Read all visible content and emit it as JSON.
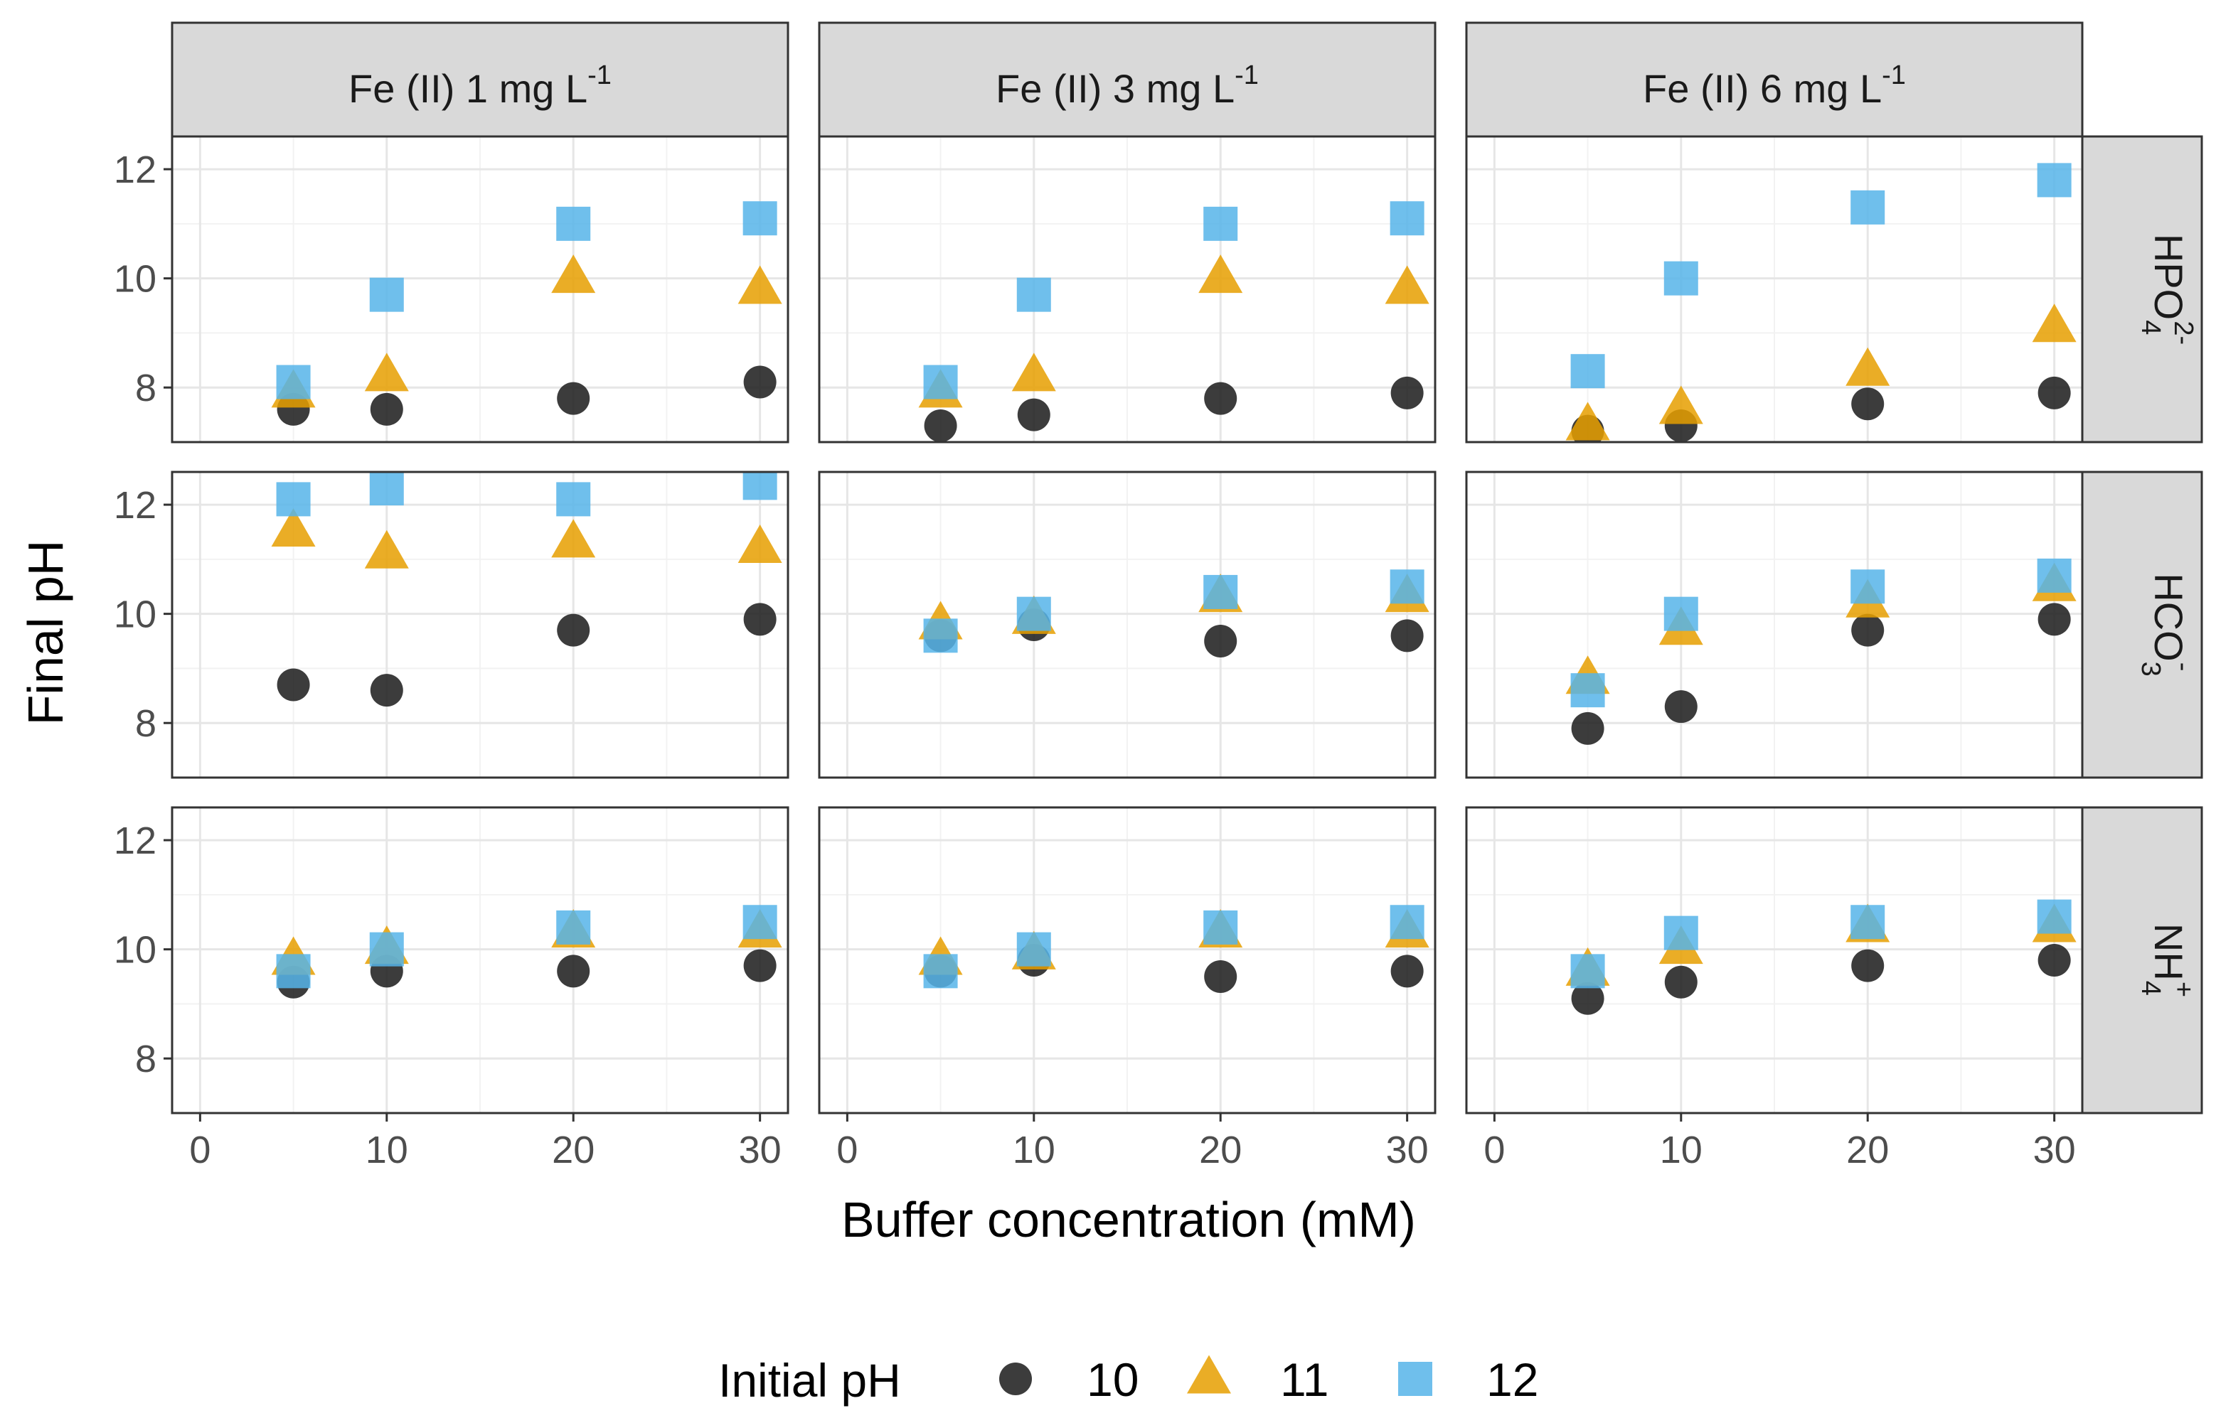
{
  "chart_data": {
    "type": "scatter",
    "facet_columns": [
      {
        "key": "fe1",
        "label": "Fe (II) 1 mg L",
        "sup": "-1"
      },
      {
        "key": "fe3",
        "label": "Fe (II) 3 mg L",
        "sup": "-1"
      },
      {
        "key": "fe6",
        "label": "Fe (II) 6 mg L",
        "sup": "-1"
      }
    ],
    "facet_rows": [
      {
        "key": "hpo4",
        "label": "HPO",
        "sub": "4",
        "sup": "2-"
      },
      {
        "key": "hco3",
        "label": "HCO",
        "sub": "3",
        "sup": "-"
      },
      {
        "key": "nh4",
        "label": "NH",
        "sub": "4",
        "sup": "+"
      }
    ],
    "xlabel": "Buffer concentration (mM)",
    "ylabel": "Final pH",
    "xlim": [
      -1.5,
      31.5
    ],
    "ylim": [
      7.0,
      12.6
    ],
    "xticks": [
      0,
      10,
      20,
      30
    ],
    "yticks": [
      8,
      10,
      12
    ],
    "x": [
      5,
      10,
      20,
      30
    ],
    "legend": {
      "title": "Initial pH",
      "position": "bottom",
      "entries": [
        {
          "label": "10",
          "shape": "circle",
          "color": "#1a1a1a"
        },
        {
          "label": "11",
          "shape": "triangle",
          "color": "#E69F00"
        },
        {
          "label": "12",
          "shape": "square",
          "color": "#56B4E9"
        }
      ]
    },
    "panels": [
      {
        "row": "hpo4",
        "col": "fe1",
        "series": {
          "10": [
            7.6,
            7.6,
            7.8,
            8.1
          ],
          "11": [
            7.9,
            8.2,
            10.0,
            9.8
          ],
          "12": [
            8.1,
            9.7,
            11.0,
            11.1
          ]
        }
      },
      {
        "row": "hpo4",
        "col": "fe3",
        "series": {
          "10": [
            7.3,
            7.5,
            7.8,
            7.9
          ],
          "11": [
            7.9,
            8.2,
            10.0,
            9.8
          ],
          "12": [
            8.1,
            9.7,
            11.0,
            11.1
          ]
        }
      },
      {
        "row": "hpo4",
        "col": "fe6",
        "series": {
          "10": [
            7.2,
            7.3,
            7.7,
            7.9
          ],
          "11": [
            7.3,
            7.6,
            8.3,
            9.1
          ],
          "12": [
            8.3,
            10.0,
            11.3,
            11.8
          ]
        }
      },
      {
        "row": "hco3",
        "col": "fe1",
        "series": {
          "10": [
            8.7,
            8.6,
            9.7,
            9.9
          ],
          "11": [
            11.5,
            11.1,
            11.3,
            11.2
          ],
          "12": [
            12.1,
            12.3,
            12.1,
            12.4
          ]
        }
      },
      {
        "row": "hco3",
        "col": "fe3",
        "series": {
          "10": [
            9.6,
            9.8,
            9.5,
            9.6
          ],
          "11": [
            9.8,
            9.9,
            10.3,
            10.3
          ],
          "12": [
            9.6,
            10.0,
            10.4,
            10.5
          ]
        }
      },
      {
        "row": "hco3",
        "col": "fe6",
        "series": {
          "10": [
            7.9,
            8.3,
            9.7,
            9.9
          ],
          "11": [
            8.8,
            9.7,
            10.2,
            10.5
          ],
          "12": [
            8.6,
            10.0,
            10.5,
            10.7
          ]
        }
      },
      {
        "row": "nh4",
        "col": "fe1",
        "series": {
          "10": [
            9.4,
            9.6,
            9.6,
            9.7
          ],
          "11": [
            9.8,
            10.0,
            10.3,
            10.3
          ],
          "12": [
            9.6,
            10.0,
            10.4,
            10.5
          ]
        }
      },
      {
        "row": "nh4",
        "col": "fe3",
        "series": {
          "10": [
            9.6,
            9.8,
            9.5,
            9.6
          ],
          "11": [
            9.8,
            9.9,
            10.3,
            10.3
          ],
          "12": [
            9.6,
            10.0,
            10.4,
            10.5
          ]
        }
      },
      {
        "row": "nh4",
        "col": "fe6",
        "series": {
          "10": [
            9.1,
            9.4,
            9.7,
            9.8
          ],
          "11": [
            9.6,
            10.0,
            10.4,
            10.4
          ],
          "12": [
            9.6,
            10.3,
            10.5,
            10.6
          ]
        }
      }
    ]
  }
}
